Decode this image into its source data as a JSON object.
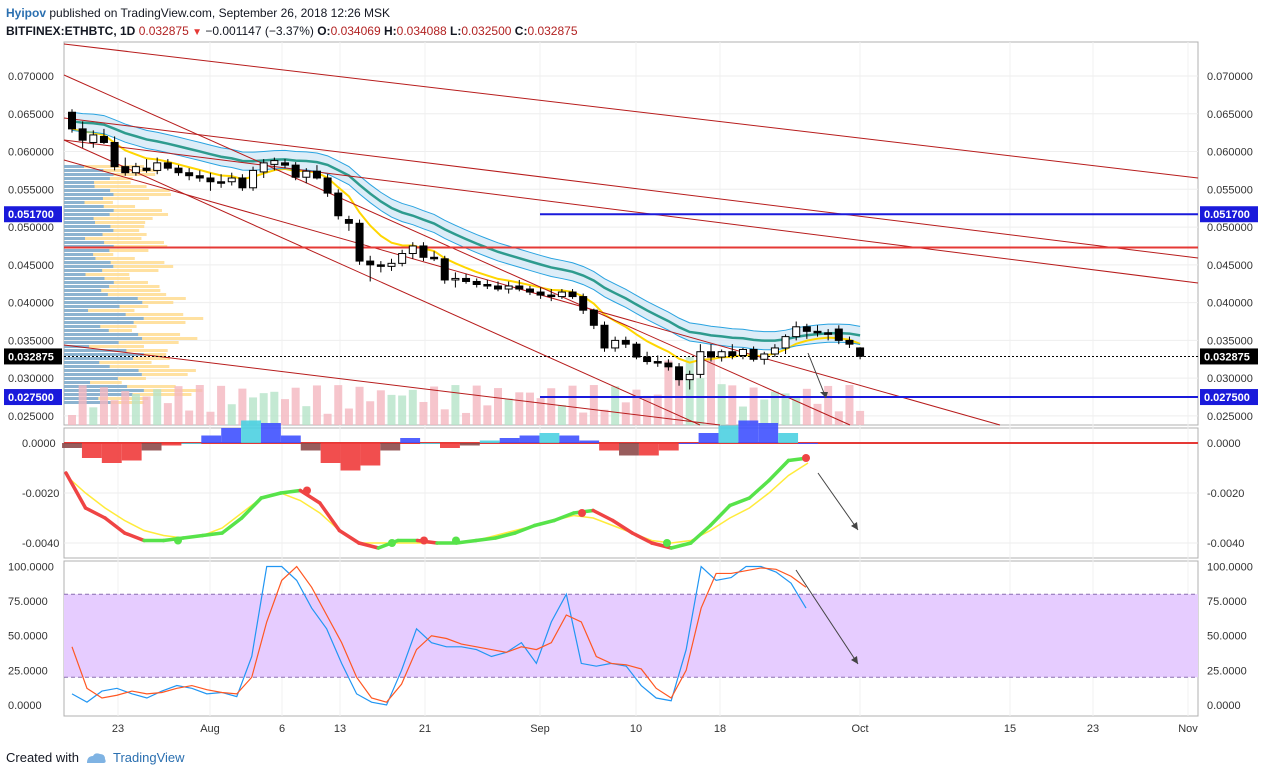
{
  "header": {
    "author": "Hyipov",
    "published": "published on TradingView.com, September 26, 2018 12:26 MSK",
    "symbol": "BITFINEX:ETHBTC, 1D",
    "last": "0.032875",
    "change": "−0.001147 (−3.37%)",
    "o_label": "O:",
    "o_val": "0.034069",
    "h_label": "H:",
    "h_val": "0.034088",
    "l_label": "L:",
    "l_val": "0.032500",
    "c_label": "C:",
    "c_val": "0.032875"
  },
  "footer": {
    "created_with": "Created with",
    "brand": "TradingView"
  },
  "colors": {
    "up": "#ffffff",
    "down": "#000000",
    "trend": "#b71c1c",
    "level_red": "#e53935",
    "level_blue": "#1a1adb",
    "ema_teal": "#2e9b8e",
    "ema_yellow": "#ffd600",
    "stoch_fill": "#e6ccff"
  },
  "chart_data": [
    {
      "type": "candlestick",
      "pane": "price",
      "y_ticks": [
        "0.070000",
        "0.065000",
        "0.060000",
        "0.055000",
        "0.050000",
        "0.045000",
        "0.040000",
        "0.035000",
        "0.030000",
        "0.025000"
      ],
      "x_ticks": [
        "23",
        "Aug",
        "6",
        "13",
        "21",
        "Sep",
        "10",
        "18",
        "Oct",
        "15",
        "23",
        "Nov"
      ],
      "levels": [
        {
          "label": "0.051700",
          "value": 0.0517,
          "color": "#1a1adb"
        },
        {
          "label": "0.032875",
          "value": 0.032875,
          "color": "#000000"
        },
        {
          "label": "0.027500",
          "value": 0.0275,
          "color": "#1a1adb"
        },
        {
          "label": "",
          "value": 0.0473,
          "color": "#e53935"
        }
      ],
      "ohlc": [
        [
          0.0652,
          0.0656,
          0.0625,
          0.063
        ],
        [
          0.063,
          0.064,
          0.0605,
          0.0615
        ],
        [
          0.0612,
          0.0628,
          0.0605,
          0.0622
        ],
        [
          0.062,
          0.063,
          0.061,
          0.0612
        ],
        [
          0.0612,
          0.062,
          0.0575,
          0.058
        ],
        [
          0.058,
          0.0592,
          0.0568,
          0.0572
        ],
        [
          0.0572,
          0.0585,
          0.0568,
          0.058
        ],
        [
          0.0578,
          0.059,
          0.0572,
          0.0575
        ],
        [
          0.0575,
          0.0592,
          0.057,
          0.0585
        ],
        [
          0.0585,
          0.059,
          0.0575,
          0.0578
        ],
        [
          0.0578,
          0.0582,
          0.0568,
          0.0572
        ],
        [
          0.0572,
          0.0578,
          0.0562,
          0.0568
        ],
        [
          0.0568,
          0.0575,
          0.056,
          0.0565
        ],
        [
          0.0565,
          0.0572,
          0.0548,
          0.056
        ],
        [
          0.056,
          0.057,
          0.0552,
          0.0558
        ],
        [
          0.056,
          0.0572,
          0.0555,
          0.0565
        ],
        [
          0.0565,
          0.057,
          0.0548,
          0.0552
        ],
        [
          0.0552,
          0.058,
          0.0548,
          0.0575
        ],
        [
          0.0573,
          0.059,
          0.0565,
          0.0585
        ],
        [
          0.0583,
          0.0592,
          0.0575,
          0.0588
        ],
        [
          0.0585,
          0.059,
          0.0578,
          0.0582
        ],
        [
          0.0582,
          0.0586,
          0.0562,
          0.0566
        ],
        [
          0.0566,
          0.0578,
          0.0558,
          0.0574
        ],
        [
          0.0574,
          0.0582,
          0.0563,
          0.0565
        ],
        [
          0.0565,
          0.057,
          0.054,
          0.0545
        ],
        [
          0.0545,
          0.055,
          0.051,
          0.0515
        ],
        [
          0.051,
          0.0515,
          0.0495,
          0.0505
        ],
        [
          0.0505,
          0.051,
          0.045,
          0.0455
        ],
        [
          0.0455,
          0.0462,
          0.0428,
          0.045
        ],
        [
          0.045,
          0.0455,
          0.044,
          0.0448
        ],
        [
          0.0448,
          0.0458,
          0.0442,
          0.0452
        ],
        [
          0.0452,
          0.047,
          0.0448,
          0.0465
        ],
        [
          0.0465,
          0.048,
          0.0458,
          0.0475
        ],
        [
          0.0475,
          0.048,
          0.0455,
          0.046
        ],
        [
          0.046,
          0.0468,
          0.0455,
          0.0458
        ],
        [
          0.0458,
          0.0462,
          0.0425,
          0.043
        ],
        [
          0.043,
          0.044,
          0.042,
          0.0432
        ],
        [
          0.0432,
          0.0438,
          0.0425,
          0.0428
        ],
        [
          0.0428,
          0.0432,
          0.042,
          0.0424
        ],
        [
          0.0424,
          0.043,
          0.0418,
          0.0422
        ],
        [
          0.0422,
          0.0428,
          0.0415,
          0.0418
        ],
        [
          0.0418,
          0.0428,
          0.0412,
          0.0422
        ],
        [
          0.0422,
          0.043,
          0.0415,
          0.0418
        ],
        [
          0.0418,
          0.0422,
          0.041,
          0.0414
        ],
        [
          0.0414,
          0.042,
          0.0405,
          0.041
        ],
        [
          0.041,
          0.0418,
          0.0402,
          0.0408
        ],
        [
          0.0408,
          0.0418,
          0.0405,
          0.0414
        ],
        [
          0.0414,
          0.0418,
          0.0405,
          0.0408
        ],
        [
          0.0408,
          0.0412,
          0.0385,
          0.039
        ],
        [
          0.039,
          0.0392,
          0.0365,
          0.037
        ],
        [
          0.037,
          0.0375,
          0.0335,
          0.034
        ],
        [
          0.034,
          0.0355,
          0.0335,
          0.035
        ],
        [
          0.035,
          0.0355,
          0.034,
          0.0345
        ],
        [
          0.0345,
          0.0348,
          0.0325,
          0.0328
        ],
        [
          0.0328,
          0.0335,
          0.0318,
          0.0322
        ],
        [
          0.0322,
          0.033,
          0.0315,
          0.032
        ],
        [
          0.032,
          0.0325,
          0.031,
          0.0315
        ],
        [
          0.0315,
          0.032,
          0.029,
          0.0298
        ],
        [
          0.0298,
          0.031,
          0.0285,
          0.0305
        ],
        [
          0.0305,
          0.0345,
          0.03,
          0.0335
        ],
        [
          0.0335,
          0.0345,
          0.0322,
          0.0328
        ],
        [
          0.0328,
          0.0338,
          0.0322,
          0.0335
        ],
        [
          0.0335,
          0.0345,
          0.0325,
          0.033
        ],
        [
          0.033,
          0.034,
          0.0325,
          0.0338
        ],
        [
          0.0338,
          0.0342,
          0.0322,
          0.0325
        ],
        [
          0.0325,
          0.0335,
          0.0318,
          0.0332
        ],
        [
          0.0332,
          0.0345,
          0.0328,
          0.034
        ],
        [
          0.034,
          0.0358,
          0.0332,
          0.0355
        ],
        [
          0.0355,
          0.0375,
          0.035,
          0.0368
        ],
        [
          0.0368,
          0.0372,
          0.0352,
          0.0362
        ],
        [
          0.0362,
          0.037,
          0.0355,
          0.036
        ],
        [
          0.036,
          0.0365,
          0.035,
          0.0358
        ],
        [
          0.0365,
          0.037,
          0.0345,
          0.035
        ],
        [
          0.035,
          0.0355,
          0.034,
          0.0345
        ],
        [
          0.034,
          0.0341,
          0.0325,
          0.0329
        ]
      ]
    },
    {
      "type": "area",
      "pane": "macd",
      "y_ticks": [
        "0.0000",
        "-0.0020",
        "-0.0040"
      ],
      "series": [
        {
          "values": [
            -0.0002,
            -0.0006,
            -0.0008,
            -0.0007,
            -0.0003,
            -0.0001,
            0.0,
            0.0003,
            0.0006,
            0.0009,
            0.0008,
            0.0003,
            -0.0003,
            -0.0008,
            -0.0011,
            -0.0009,
            -0.0003,
            0.0002,
            0.0,
            -0.0002,
            -0.0001,
            0.0001,
            0.0002,
            0.0003,
            0.0004,
            0.0003,
            0.0001,
            -0.0003,
            -0.0005,
            -0.0005,
            -0.0003,
            0.0,
            0.0004,
            0.0007,
            0.0009,
            0.0008,
            0.0004,
            0.0
          ]
        }
      ]
    },
    {
      "type": "line",
      "pane": "stoch_rsi",
      "y_ticks": [
        "100.0000",
        "75.0000",
        "50.0000",
        "25.0000",
        "0.0000"
      ],
      "series": [
        {
          "values": [
            8,
            2,
            10,
            12,
            8,
            5,
            10,
            14,
            12,
            8,
            9,
            6,
            35,
            100,
            100,
            90,
            70,
            55,
            30,
            8,
            2,
            0,
            25,
            55,
            45,
            42,
            42,
            40,
            35,
            38,
            45,
            30,
            60,
            80,
            30,
            28,
            30,
            28,
            14,
            5,
            3,
            40,
            100,
            90,
            92,
            100,
            100,
            96,
            88,
            70
          ]
        },
        {
          "values": [
            42,
            12,
            5,
            7,
            10,
            8,
            9,
            12,
            14,
            11,
            9,
            8,
            20,
            60,
            90,
            100,
            85,
            65,
            45,
            20,
            5,
            2,
            15,
            40,
            50,
            48,
            44,
            42,
            40,
            38,
            42,
            40,
            45,
            65,
            60,
            35,
            30,
            29,
            26,
            12,
            5,
            25,
            70,
            95,
            95,
            97,
            99,
            98,
            93,
            85
          ]
        }
      ]
    }
  ]
}
